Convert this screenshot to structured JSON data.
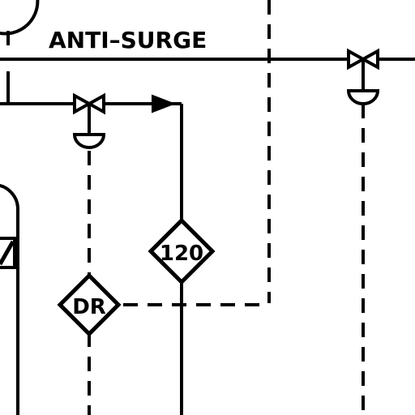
{
  "labels": {
    "line_label": "ANTI–SURGE",
    "tag_upper": "120",
    "tag_lower": "DR"
  },
  "colors": {
    "line": "#000000",
    "background": "#ffffff"
  }
}
